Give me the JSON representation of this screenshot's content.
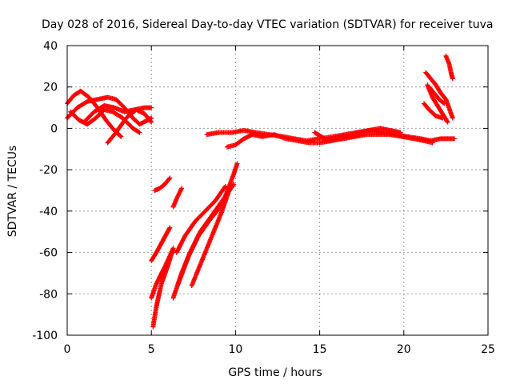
{
  "chart_data": {
    "type": "scatter",
    "title": "Day 028 of 2016, Sidereal Day-to-day VTEC variation (SDTVAR) for receiver tuva",
    "xlabel": "GPS time / hours",
    "ylabel": "SDTVAR / TECUs",
    "xlim": [
      0,
      25
    ],
    "ylim": [
      -100,
      40
    ],
    "xticks": [
      0,
      5,
      10,
      15,
      20,
      25
    ],
    "yticks": [
      -100,
      -80,
      -60,
      -40,
      -20,
      0,
      20,
      40
    ],
    "grid": true,
    "marker": "plus",
    "color": "#ff0000",
    "tracks": [
      [
        [
          0.0,
          12
        ],
        [
          0.4,
          16
        ],
        [
          0.8,
          18
        ],
        [
          1.3,
          15
        ],
        [
          1.8,
          10
        ],
        [
          2.3,
          4
        ],
        [
          2.8,
          -1
        ],
        [
          3.2,
          -4
        ]
      ],
      [
        [
          0.2,
          8
        ],
        [
          0.7,
          4
        ],
        [
          1.2,
          2
        ],
        [
          1.7,
          5
        ],
        [
          2.2,
          9
        ],
        [
          2.7,
          8
        ],
        [
          3.3,
          5
        ],
        [
          3.9,
          0
        ],
        [
          4.3,
          -2
        ]
      ],
      [
        [
          0.0,
          5
        ],
        [
          0.6,
          10
        ],
        [
          1.2,
          13
        ],
        [
          1.8,
          14
        ],
        [
          2.4,
          15
        ],
        [
          2.9,
          14
        ],
        [
          3.4,
          10
        ],
        [
          3.9,
          5
        ],
        [
          4.3,
          2
        ],
        [
          4.8,
          4
        ],
        [
          5.0,
          5
        ]
      ],
      [
        [
          1.0,
          3
        ],
        [
          1.6,
          8
        ],
        [
          2.2,
          11
        ],
        [
          2.8,
          10
        ],
        [
          3.4,
          8
        ],
        [
          4.0,
          9
        ],
        [
          4.6,
          10
        ],
        [
          5.0,
          10
        ]
      ],
      [
        [
          2.4,
          -7
        ],
        [
          2.9,
          -2
        ],
        [
          3.5,
          5
        ],
        [
          4.1,
          9
        ],
        [
          4.6,
          7
        ],
        [
          5.0,
          3
        ]
      ],
      [
        [
          5.0,
          -64
        ],
        [
          5.3,
          -60
        ],
        [
          5.7,
          -54
        ],
        [
          6.1,
          -48
        ]
      ],
      [
        [
          5.2,
          -30
        ],
        [
          5.5,
          -29
        ],
        [
          5.8,
          -27
        ],
        [
          6.1,
          -24
        ]
      ],
      [
        [
          6.3,
          -38
        ],
        [
          6.5,
          -34
        ],
        [
          6.8,
          -29
        ]
      ],
      [
        [
          5.0,
          -82
        ],
        [
          5.3,
          -75
        ],
        [
          5.8,
          -67
        ],
        [
          6.3,
          -58
        ]
      ],
      [
        [
          5.1,
          -96
        ],
        [
          5.3,
          -86
        ],
        [
          5.6,
          -75
        ],
        [
          6.0,
          -66
        ],
        [
          6.3,
          -58
        ]
      ],
      [
        [
          6.3,
          -82
        ],
        [
          6.8,
          -70
        ],
        [
          7.3,
          -60
        ],
        [
          7.9,
          -50
        ],
        [
          8.6,
          -42
        ],
        [
          9.3,
          -34
        ],
        [
          9.9,
          -27
        ]
      ],
      [
        [
          6.6,
          -75
        ],
        [
          7.2,
          -62
        ],
        [
          7.8,
          -52
        ],
        [
          8.5,
          -44
        ],
        [
          9.2,
          -37
        ],
        [
          9.9,
          -22
        ],
        [
          10.1,
          -17
        ]
      ],
      [
        [
          6.5,
          -60
        ],
        [
          7.0,
          -52
        ],
        [
          7.6,
          -45
        ],
        [
          8.2,
          -40
        ],
        [
          8.8,
          -35
        ],
        [
          9.4,
          -28
        ]
      ],
      [
        [
          7.4,
          -76
        ],
        [
          8.0,
          -64
        ],
        [
          8.6,
          -52
        ],
        [
          9.2,
          -40
        ],
        [
          9.7,
          -28
        ]
      ],
      [
        [
          8.3,
          -3
        ],
        [
          9.0,
          -2
        ],
        [
          9.8,
          -2
        ],
        [
          10.5,
          -1
        ],
        [
          11.2,
          -2
        ],
        [
          12.0,
          -3
        ],
        [
          12.8,
          -4
        ],
        [
          13.5,
          -5
        ],
        [
          14.2,
          -6
        ],
        [
          15.0,
          -5
        ],
        [
          15.8,
          -4
        ],
        [
          16.5,
          -3
        ],
        [
          17.2,
          -2
        ],
        [
          18.0,
          -1
        ],
        [
          18.8,
          -2
        ],
        [
          19.5,
          -3
        ],
        [
          20.2,
          -4
        ],
        [
          21.0,
          -5
        ],
        [
          21.6,
          -6
        ],
        [
          22.2,
          -5
        ],
        [
          22.6,
          -5
        ],
        [
          23.0,
          -5
        ]
      ],
      [
        [
          9.5,
          -9
        ],
        [
          10.0,
          -8
        ],
        [
          10.5,
          -5
        ],
        [
          11.0,
          -3
        ],
        [
          11.6,
          -4
        ],
        [
          12.3,
          -3
        ],
        [
          13.0,
          -5
        ],
        [
          13.7,
          -6
        ],
        [
          14.4,
          -7
        ],
        [
          15.0,
          -7
        ],
        [
          15.7,
          -6
        ],
        [
          16.4,
          -5
        ],
        [
          17.1,
          -4
        ],
        [
          17.8,
          -3
        ],
        [
          18.5,
          -3
        ],
        [
          19.2,
          -3
        ],
        [
          19.9,
          -4
        ],
        [
          20.6,
          -5
        ],
        [
          21.2,
          -6
        ],
        [
          21.7,
          -7
        ]
      ],
      [
        [
          14.7,
          -2
        ],
        [
          15.1,
          -4
        ],
        [
          15.5,
          -6
        ],
        [
          16.0,
          -5
        ],
        [
          16.6,
          -4
        ],
        [
          17.3,
          -2
        ],
        [
          17.9,
          -1
        ],
        [
          18.6,
          0
        ],
        [
          19.2,
          -1
        ],
        [
          19.8,
          -2
        ]
      ],
      [
        [
          21.3,
          27
        ],
        [
          21.6,
          24
        ],
        [
          21.9,
          21
        ],
        [
          22.2,
          17
        ],
        [
          22.5,
          14
        ],
        [
          22.9,
          5
        ]
      ],
      [
        [
          21.4,
          21
        ],
        [
          21.7,
          15
        ],
        [
          22.0,
          11
        ],
        [
          22.3,
          7
        ],
        [
          22.6,
          3
        ]
      ],
      [
        [
          21.2,
          12
        ],
        [
          21.5,
          9
        ],
        [
          21.9,
          6
        ],
        [
          22.3,
          5
        ]
      ],
      [
        [
          21.5,
          20
        ],
        [
          21.8,
          17
        ],
        [
          22.1,
          14
        ],
        [
          22.4,
          12
        ]
      ],
      [
        [
          22.5,
          35
        ],
        [
          22.7,
          31
        ],
        [
          22.8,
          27
        ],
        [
          22.9,
          24
        ]
      ]
    ]
  }
}
